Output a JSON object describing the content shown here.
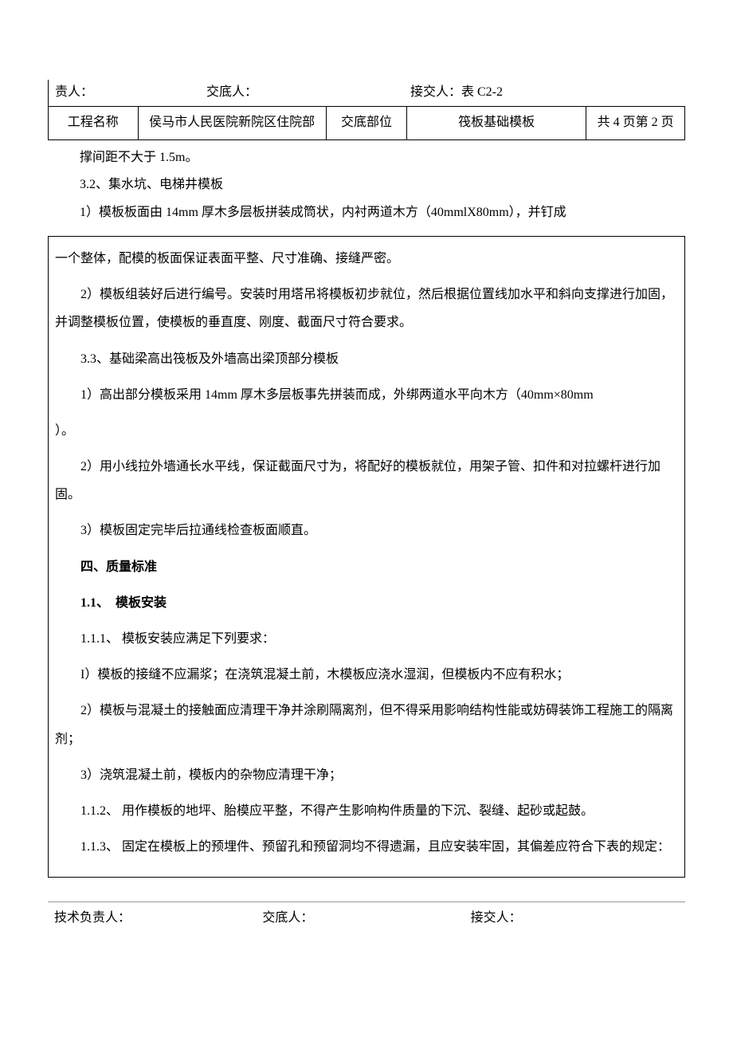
{
  "header": {
    "responsible_label": "责人：",
    "disclose_label": "交底人：",
    "receive_label": "接交人：表 C2-2"
  },
  "table": {
    "project_label": "工程名称",
    "project_name": "侯马市人民医院新院区住院部",
    "part_label": "交底部位",
    "part_name": "筏板基础模板",
    "page_info": "共 4 页第 2 页"
  },
  "pre": {
    "p1": "撑间距不大于 1.5m。",
    "p2": "3.2、集水坑、电梯井模板",
    "p3": "1）模板板面由 14mm 厚木多层板拼装成筒状，内衬两道木方（40mmlX80mm），并钉成"
  },
  "body": {
    "p1": "一个整体，配模的板面保证表面平整、尺寸准确、接缝严密。",
    "p2": "2）模板组装好后进行编号。安装时用塔吊将模板初步就位，然后根据位置线加水平和斜向支撑进行加固，并调整模板位置，使模板的垂直度、刚度、截面尺寸符合要求。",
    "p3": "3.3、基础梁高出筏板及外墙高出梁顶部分模板",
    "p4a": "1）高出部分模板采用 14mm 厚木多层板事先拼装而成，外绑两道水平向木方（40mm×80mm",
    "p4b": "）。",
    "p5": "2）用小线拉外墙通长水平线，保证截面尺寸为，将配好的模板就位，用架子管、扣件和对拉螺杆进行加固。",
    "p6": "3）模板固定完毕后拉通线检查板面顺直。",
    "p7": "四、质量标准",
    "p8": "1.1、　模板安装",
    "p9": "1.1.1、 模板安装应满足下列要求：",
    "p10": "I）模板的接缝不应漏浆；在浇筑混凝土前，木模板应浇水湿润，但模板内不应有积水；",
    "p11": "2）模板与混凝土的接触面应清理干净并涂刷隔离剂，但不得采用影响结构性能或妨碍装饰工程施工的隔离剂；",
    "p12": "3）浇筑混凝土前，模板内的杂物应清理干净；",
    "p13": "1.1.2、 用作模板的地坪、胎模应平整，不得产生影响构件质量的下沉、裂缝、起砂或起鼓。",
    "p14": "1.1.3、 固定在模板上的预埋件、预留孔和预留洞均不得遗漏，且应安装牢固，其偏差应符合下表的规定："
  },
  "footer": {
    "tech_label": "技术负责人：",
    "disclose_label": "交底人：",
    "receive_label": "接交人："
  },
  "style": {
    "font_family": "SimSun",
    "font_size_body": 16,
    "line_height": 2.2,
    "text_color": "#000000",
    "background_color": "#ffffff",
    "border_color": "#000000"
  }
}
